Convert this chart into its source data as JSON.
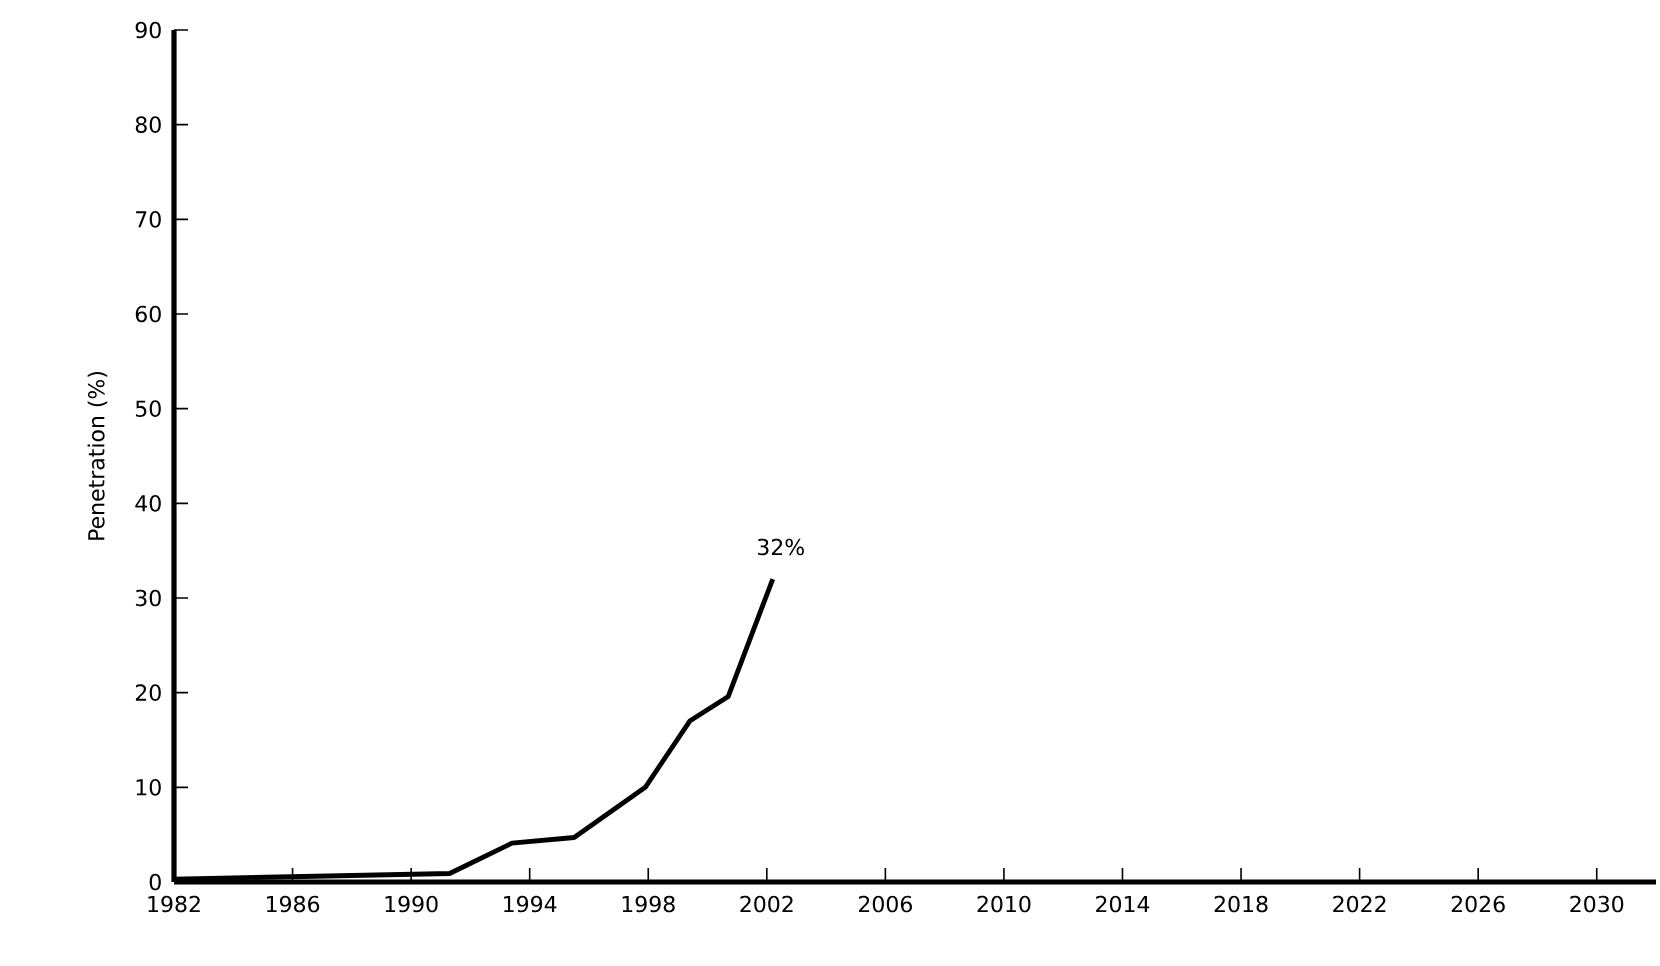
{
  "chart_data": {
    "type": "line",
    "ylabel": "Penetration (%)",
    "x": [
      1982,
      1991.3,
      1993.4,
      1995.5,
      1997.9,
      1999.4,
      2000.7,
      2002.2
    ],
    "series": [
      {
        "color": "#000000",
        "values": [
          0.3,
          0.9,
          4.1,
          4.7,
          10.0,
          17.0,
          19.6,
          32
        ]
      }
    ],
    "xlim": [
      1982,
      2032
    ],
    "ylim": [
      0,
      90
    ],
    "xticks": [
      1982,
      1986,
      1990,
      1994,
      1998,
      2002,
      2006,
      2010,
      2014,
      2018,
      2022,
      2026,
      2030
    ],
    "yticks": [
      0,
      10,
      20,
      30,
      40,
      50,
      60,
      70,
      80,
      90
    ],
    "annotations": [
      {
        "text": "32%",
        "x": 2002.2,
        "y": 32
      }
    ]
  }
}
